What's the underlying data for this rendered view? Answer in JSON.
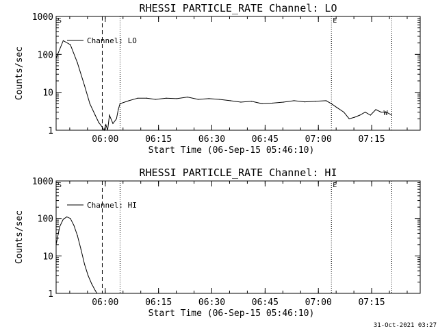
{
  "chart_data": [
    {
      "type": "line",
      "title": "RHESSI PARTICLE_RATE Channel: LO",
      "xlabel": "Start Time (06-Sep-15 05:46:10)",
      "ylabel": "Counts/sec",
      "yscale": "log",
      "ylim": [
        1,
        1000
      ],
      "xlim": [
        "05:46:10",
        "07:28:40"
      ],
      "yticks": [
        "1",
        "10",
        "100",
        "1000"
      ],
      "xticks": [
        "06:00",
        "06:15",
        "06:30",
        "06:45",
        "07:00",
        "07:15"
      ],
      "legend": "top-left",
      "marker_labels": [
        "S",
        "E",
        "W"
      ],
      "vlines": [
        {
          "time": "05:59:10",
          "style": "dashed"
        },
        {
          "time": "06:04:10",
          "style": "dotted"
        },
        {
          "time": "07:03:40",
          "style": "dotted"
        },
        {
          "time": "07:20:40",
          "style": "dotted"
        }
      ],
      "series": [
        {
          "name": "Channel: LO",
          "x": [
            "05:46:10",
            "05:48:10",
            "05:50:10",
            "05:52:10",
            "05:54:10",
            "05:55:40",
            "05:57:10",
            "05:58:10",
            "05:59:10",
            "05:59:40",
            "06:00:10",
            "06:00:40",
            "06:01:10",
            "06:02:10",
            "06:03:10",
            "06:03:40",
            "06:04:10",
            "06:06:40",
            "06:09:10",
            "06:11:40",
            "06:14:10",
            "06:17:10",
            "06:20:10",
            "06:23:10",
            "06:26:10",
            "06:29:10",
            "06:32:10",
            "06:35:10",
            "06:38:10",
            "06:41:10",
            "06:44:10",
            "06:47:10",
            "06:50:10",
            "06:53:10",
            "06:56:10",
            "06:59:10",
            "07:02:10",
            "07:03:40",
            "07:05:10",
            "07:07:10",
            "07:08:40",
            "07:10:10",
            "07:11:40",
            "07:13:10",
            "07:14:40",
            "07:16:10",
            "07:17:40",
            "07:19:10",
            "07:20:40"
          ],
          "values": [
            80,
            230,
            180,
            60,
            15,
            5,
            2.5,
            1.6,
            1.2,
            1,
            1.4,
            1,
            2.5,
            1.5,
            2,
            3.5,
            5,
            6,
            7,
            7,
            6.5,
            7,
            6.8,
            7.5,
            6.5,
            6.8,
            6.5,
            6,
            5.5,
            5.8,
            5,
            5.2,
            5.5,
            6,
            5.6,
            5.8,
            6,
            5,
            4,
            3,
            2,
            2.2,
            2.5,
            3,
            2.5,
            3.5,
            3,
            3,
            2.5
          ]
        }
      ]
    },
    {
      "type": "line",
      "title": "RHESSI PARTICLE_RATE Channel: HI",
      "xlabel": "Start Time (06-Sep-15 05:46:10)",
      "ylabel": "Counts/sec",
      "yscale": "log",
      "ylim": [
        1,
        1000
      ],
      "xlim": [
        "05:46:10",
        "07:28:40"
      ],
      "yticks": [
        "1",
        "10",
        "100",
        "1000"
      ],
      "xticks": [
        "06:00",
        "06:15",
        "06:30",
        "06:45",
        "07:00",
        "07:15"
      ],
      "legend": "top-left",
      "marker_labels": [
        "S",
        "E"
      ],
      "vlines": [
        {
          "time": "05:59:10",
          "style": "dashed"
        },
        {
          "time": "06:04:10",
          "style": "dotted"
        },
        {
          "time": "07:03:40",
          "style": "dotted"
        },
        {
          "time": "07:20:40",
          "style": "dotted"
        }
      ],
      "series": [
        {
          "name": "Channel: HI",
          "x": [
            "05:46:10",
            "05:47:10",
            "05:48:10",
            "05:49:10",
            "05:50:10",
            "05:51:10",
            "05:52:10",
            "05:53:10",
            "05:54:10",
            "05:55:10",
            "05:56:10",
            "05:57:10",
            "05:57:40"
          ],
          "values": [
            20,
            60,
            95,
            110,
            100,
            65,
            35,
            15,
            6,
            3,
            1.8,
            1.2,
            1
          ]
        }
      ]
    }
  ],
  "footer": {
    "timestamp": "31-Oct-2021 03:27"
  }
}
